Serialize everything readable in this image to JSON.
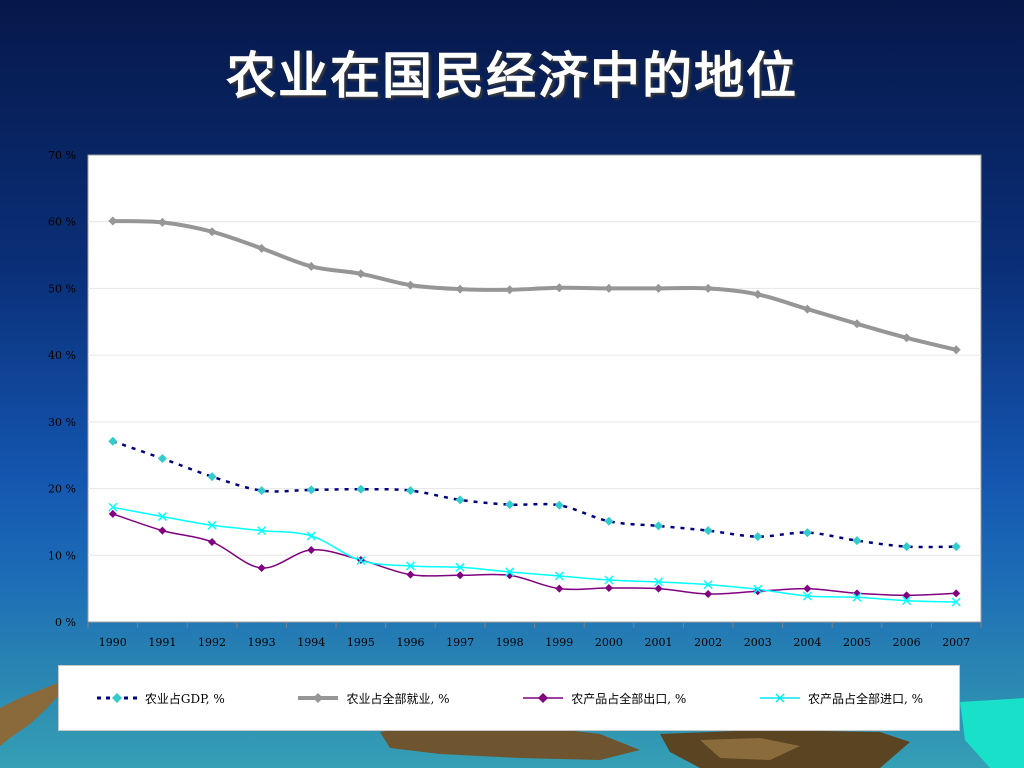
{
  "slide": {
    "title": "农业在国民经济中的地位"
  },
  "colors": {
    "background_top": "#06184a",
    "background_bottom": "#35a0b4",
    "series_gdp": "#000080",
    "series_gdp_marker": "#33cccc",
    "series_employment": "#969696",
    "series_exports": "#800080",
    "series_imports": "#00ffff"
  },
  "chart_data": {
    "type": "line",
    "title": "",
    "xlabel": "",
    "ylabel": "",
    "ylim": [
      0,
      70
    ],
    "yticks": [
      0,
      10,
      20,
      30,
      40,
      50,
      60,
      70
    ],
    "ytick_labels": [
      "0 %",
      "10 %",
      "20 %",
      "30 %",
      "40 %",
      "50 %",
      "60 %",
      "70 %"
    ],
    "grid": "horizontal",
    "legend_position": "bottom",
    "categories": [
      "1990",
      "1991",
      "1992",
      "1993",
      "1994",
      "1995",
      "1996",
      "1997",
      "1998",
      "1999",
      "2000",
      "2001",
      "2002",
      "2003",
      "2004",
      "2005",
      "2006",
      "2007"
    ],
    "series": [
      {
        "name": "农业占GDP, %",
        "style": "dotted",
        "marker": "diamond",
        "values": [
          27.1,
          24.5,
          21.8,
          19.7,
          19.8,
          19.9,
          19.7,
          18.3,
          17.6,
          17.5,
          15.1,
          14.4,
          13.7,
          12.8,
          13.4,
          12.2,
          11.3,
          11.3
        ]
      },
      {
        "name": "农业占全部就业, %",
        "style": "solid-thick",
        "marker": "diamond",
        "values": [
          60.1,
          59.9,
          58.5,
          56.0,
          53.3,
          52.2,
          50.5,
          49.9,
          49.8,
          50.1,
          50.0,
          50.0,
          50.0,
          49.1,
          46.9,
          44.7,
          42.6,
          40.8
        ]
      },
      {
        "name": "农产品占全部出口, %",
        "style": "solid",
        "marker": "diamond",
        "values": [
          16.2,
          13.7,
          12.0,
          8.1,
          10.8,
          9.3,
          7.1,
          7.0,
          7.0,
          5.0,
          5.1,
          5.0,
          4.2,
          4.6,
          5.0,
          4.3,
          4.0,
          4.3
        ]
      },
      {
        "name": "农产品占全部进口, %",
        "style": "solid",
        "marker": "x",
        "values": [
          17.2,
          15.8,
          14.5,
          13.7,
          12.9,
          9.2,
          8.4,
          8.2,
          7.5,
          6.9,
          6.3,
          6.0,
          5.6,
          4.9,
          3.9,
          3.7,
          3.2,
          3.0
        ]
      }
    ]
  }
}
